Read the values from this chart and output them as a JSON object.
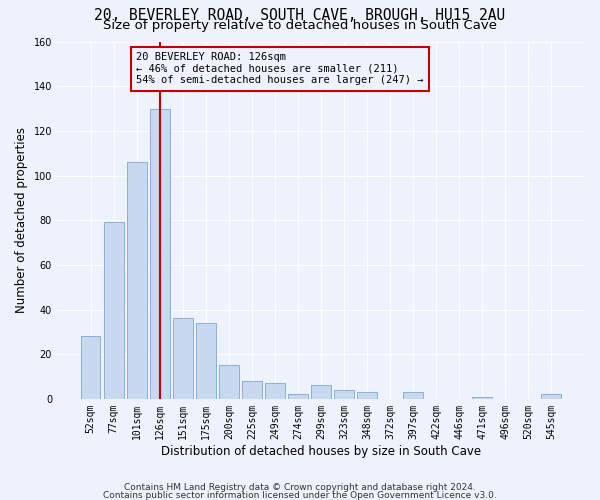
{
  "title": "20, BEVERLEY ROAD, SOUTH CAVE, BROUGH, HU15 2AU",
  "subtitle": "Size of property relative to detached houses in South Cave",
  "xlabel": "Distribution of detached houses by size in South Cave",
  "ylabel": "Number of detached properties",
  "categories": [
    "52sqm",
    "77sqm",
    "101sqm",
    "126sqm",
    "151sqm",
    "175sqm",
    "200sqm",
    "225sqm",
    "249sqm",
    "274sqm",
    "299sqm",
    "323sqm",
    "348sqm",
    "372sqm",
    "397sqm",
    "422sqm",
    "446sqm",
    "471sqm",
    "496sqm",
    "520sqm",
    "545sqm"
  ],
  "values": [
    28,
    79,
    106,
    130,
    36,
    34,
    15,
    8,
    7,
    2,
    6,
    4,
    3,
    0,
    3,
    0,
    0,
    1,
    0,
    0,
    2
  ],
  "bar_color": "#c8d8f0",
  "bar_edge_color": "#7aa8d4",
  "highlight_index": 3,
  "highlight_color": "#c00000",
  "annotation_text": "20 BEVERLEY ROAD: 126sqm\n← 46% of detached houses are smaller (211)\n54% of semi-detached houses are larger (247) →",
  "annotation_box_color": "#c00000",
  "ylim": [
    0,
    160
  ],
  "yticks": [
    0,
    20,
    40,
    60,
    80,
    100,
    120,
    140,
    160
  ],
  "footer_line1": "Contains HM Land Registry data © Crown copyright and database right 2024.",
  "footer_line2": "Contains public sector information licensed under the Open Government Licence v3.0.",
  "bg_color": "#eef2fc",
  "grid_color": "#ffffff",
  "title_fontsize": 10.5,
  "subtitle_fontsize": 9.5,
  "axis_label_fontsize": 8.5,
  "tick_fontsize": 7,
  "footer_fontsize": 6.5,
  "annotation_fontsize": 7.5
}
